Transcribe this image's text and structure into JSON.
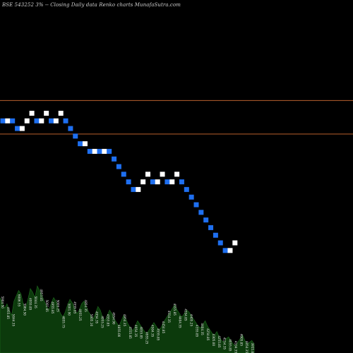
{
  "header": {
    "text": "BSE 543252  3% -- Closing Daily data Renko charts MunafaSutra.com"
  },
  "colors": {
    "background": "#000000",
    "up_brick": "#ffffff",
    "down_brick": "#1e6ff0",
    "reference_line": "#b8612e",
    "volume_fill": "#0c3a0c",
    "volume_stroke": "#1f6e1f"
  },
  "chart_data": {
    "type": "renko",
    "price_range": [
      0,
      100
    ],
    "box_size": 3,
    "bricks": [
      {
        "direction": "down",
        "level": 58.0
      },
      {
        "direction": "up",
        "level": 58.0
      },
      {
        "direction": "down",
        "level": 58.0
      },
      {
        "direction": "down",
        "level": 55.0
      },
      {
        "direction": "up",
        "level": 55.0
      },
      {
        "direction": "up",
        "level": 58.0
      },
      {
        "direction": "up",
        "level": 61.0
      },
      {
        "direction": "down",
        "level": 58.0
      },
      {
        "direction": "up",
        "level": 58.0
      },
      {
        "direction": "up",
        "level": 61.0
      },
      {
        "direction": "down",
        "level": 58.0
      },
      {
        "direction": "up",
        "level": 58.0
      },
      {
        "direction": "up",
        "level": 61.0
      },
      {
        "direction": "down",
        "level": 58.0
      },
      {
        "direction": "down",
        "level": 55.0
      },
      {
        "direction": "down",
        "level": 52.0
      },
      {
        "direction": "down",
        "level": 49.0
      },
      {
        "direction": "up",
        "level": 49.0
      },
      {
        "direction": "down",
        "level": 46.0
      },
      {
        "direction": "up",
        "level": 46.0
      },
      {
        "direction": "down",
        "level": 46.0
      },
      {
        "direction": "up",
        "level": 46.0
      },
      {
        "direction": "down",
        "level": 46.0
      },
      {
        "direction": "down",
        "level": 43.0
      },
      {
        "direction": "down",
        "level": 40.0
      },
      {
        "direction": "down",
        "level": 37.0
      },
      {
        "direction": "down",
        "level": 34.0
      },
      {
        "direction": "down",
        "level": 31.0
      },
      {
        "direction": "up",
        "level": 31.0
      },
      {
        "direction": "up",
        "level": 34.0
      },
      {
        "direction": "up",
        "level": 37.0
      },
      {
        "direction": "down",
        "level": 34.0
      },
      {
        "direction": "up",
        "level": 34.0
      },
      {
        "direction": "up",
        "level": 37.0
      },
      {
        "direction": "down",
        "level": 34.0
      },
      {
        "direction": "up",
        "level": 34.0
      },
      {
        "direction": "up",
        "level": 37.0
      },
      {
        "direction": "down",
        "level": 34.0
      },
      {
        "direction": "down",
        "level": 31.0
      },
      {
        "direction": "down",
        "level": 28.0
      },
      {
        "direction": "down",
        "level": 25.0
      },
      {
        "direction": "down",
        "level": 22.0
      },
      {
        "direction": "down",
        "level": 19.0
      },
      {
        "direction": "down",
        "level": 16.0
      },
      {
        "direction": "down",
        "level": 13.0
      },
      {
        "direction": "down",
        "level": 10.0
      },
      {
        "direction": "down",
        "level": 7.0
      },
      {
        "direction": "up",
        "level": 7.0
      },
      {
        "direction": "up",
        "level": 10.0
      }
    ],
    "reference_lines": [
      66.0,
      52.8
    ],
    "volume": {
      "values": [
        62,
        56,
        50,
        55,
        48,
        42,
        58,
        64,
        70,
        66,
        54,
        50,
        60,
        72,
        68,
        62,
        75,
        70,
        64,
        58,
        52,
        48,
        56,
        62,
        58,
        50,
        44,
        40,
        46,
        54,
        60,
        56,
        50,
        44,
        48,
        55,
        58,
        52,
        46,
        42,
        38,
        45,
        52,
        48,
        40,
        36,
        42,
        48,
        44,
        38,
        34,
        30,
        36,
        42,
        38,
        32,
        28,
        25,
        30,
        36,
        32,
        28,
        24,
        22,
        26,
        30,
        34,
        30,
        26,
        28,
        34,
        38,
        42,
        46,
        50,
        54,
        48,
        44,
        40,
        44,
        48,
        46,
        42,
        38,
        34,
        30,
        28,
        32,
        36,
        30,
        26,
        22,
        20,
        24,
        18,
        14,
        12,
        16,
        18,
        14,
        10,
        8,
        12,
        16,
        20,
        14,
        10,
        12,
        14,
        10
      ],
      "labels": [
        "5904.50",
        "4955.85",
        "5044.35",
        "6006.55",
        "5904.50",
        "4955.85",
        "5044.35",
        "4953.85",
        "5001.85",
        "4955.85",
        "5005.25",
        "4855.75",
        "5001.90",
        "4555.85",
        "4955.25",
        "4854.35",
        "5005.10",
        "4954.35",
        "4955.25",
        "4553.85",
        "4954.90",
        "4855.00",
        "4954.35",
        "4555.85",
        "4954.35",
        "4855.85",
        "4955.25",
        "4504.35",
        "4555.85",
        "4454.85",
        "4554.35",
        "4555.85",
        "4404.35",
        "4354.85",
        "4405.25",
        "4355.85",
        "4404.35",
        "4254.85",
        "4305.00",
        "4255.85",
        "4154.35",
        "4055.85",
        "4104.35",
        "4005.85",
        "4054.35",
        "3955.85"
      ]
    }
  }
}
